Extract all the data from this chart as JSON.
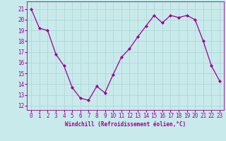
{
  "x": [
    0,
    1,
    2,
    3,
    4,
    5,
    6,
    7,
    8,
    9,
    10,
    11,
    12,
    13,
    14,
    15,
    16,
    17,
    18,
    19,
    20,
    21,
    22,
    23
  ],
  "y": [
    21,
    19.2,
    19,
    16.8,
    15.7,
    13.7,
    12.7,
    12.5,
    13.8,
    13.2,
    14.9,
    16.5,
    17.3,
    18.4,
    19.4,
    20.4,
    19.7,
    20.4,
    20.2,
    20.4,
    20.0,
    18.0,
    15.7,
    14.3
  ],
  "line_color": "#990099",
  "marker": "D",
  "markersize": 2.0,
  "linewidth": 0.9,
  "xlabel": "Windchill (Refroidissement éolien,°C)",
  "xlabel_fontsize": 5.5,
  "yticks": [
    12,
    13,
    14,
    15,
    16,
    17,
    18,
    19,
    20,
    21
  ],
  "ytick_labels": [
    "12",
    "13",
    "14",
    "15",
    "16",
    "17",
    "18",
    "19",
    "20",
    "21"
  ],
  "xticks": [
    0,
    1,
    2,
    3,
    4,
    5,
    6,
    7,
    8,
    9,
    10,
    11,
    12,
    13,
    14,
    15,
    16,
    17,
    18,
    19,
    20,
    21,
    22,
    23
  ],
  "ylim": [
    11.6,
    21.7
  ],
  "xlim": [
    -0.5,
    23.5
  ],
  "bg_color": "#c8eaea",
  "grid_color": "#b0d8d8",
  "tick_color": "#990099",
  "tick_fontsize": 5.5,
  "tick_label_color": "#990099"
}
